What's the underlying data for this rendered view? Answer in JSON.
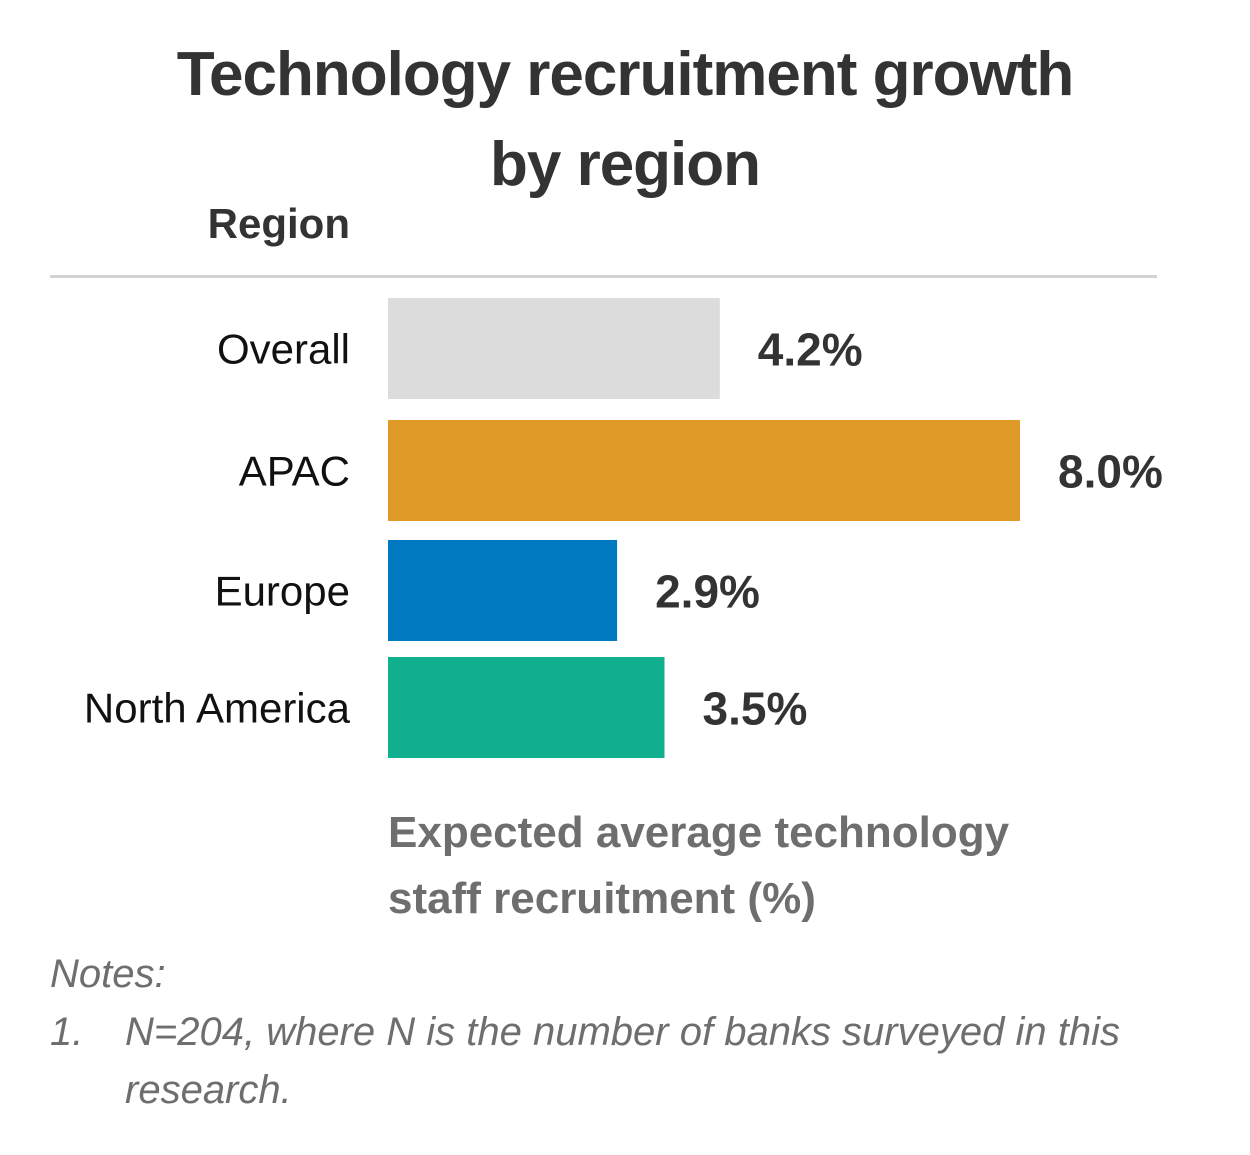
{
  "chart_data": {
    "type": "bar",
    "orientation": "horizontal",
    "title_lines": [
      "Technology recruitment growth",
      "by region"
    ],
    "category_axis_title": "Region",
    "xlabel_lines": [
      "Expected average technology",
      "staff recruitment (%)"
    ],
    "categories": [
      "Overall",
      "APAC",
      "Europe",
      "North America"
    ],
    "values": [
      4.2,
      8.0,
      2.9,
      3.5
    ],
    "value_labels": [
      "4.2%",
      "8.0%",
      "2.9%",
      "3.5%"
    ],
    "colors": [
      "#dcdcdc",
      "#e09a28",
      "#0079c1",
      "#10b08e"
    ],
    "xlim": [
      0,
      8.0
    ],
    "grid": false,
    "legend": "none"
  },
  "notes": {
    "heading": "Notes:",
    "items": [
      {
        "num": "1.",
        "text": "N=204, where N is the number of banks surveyed in this research."
      }
    ]
  }
}
